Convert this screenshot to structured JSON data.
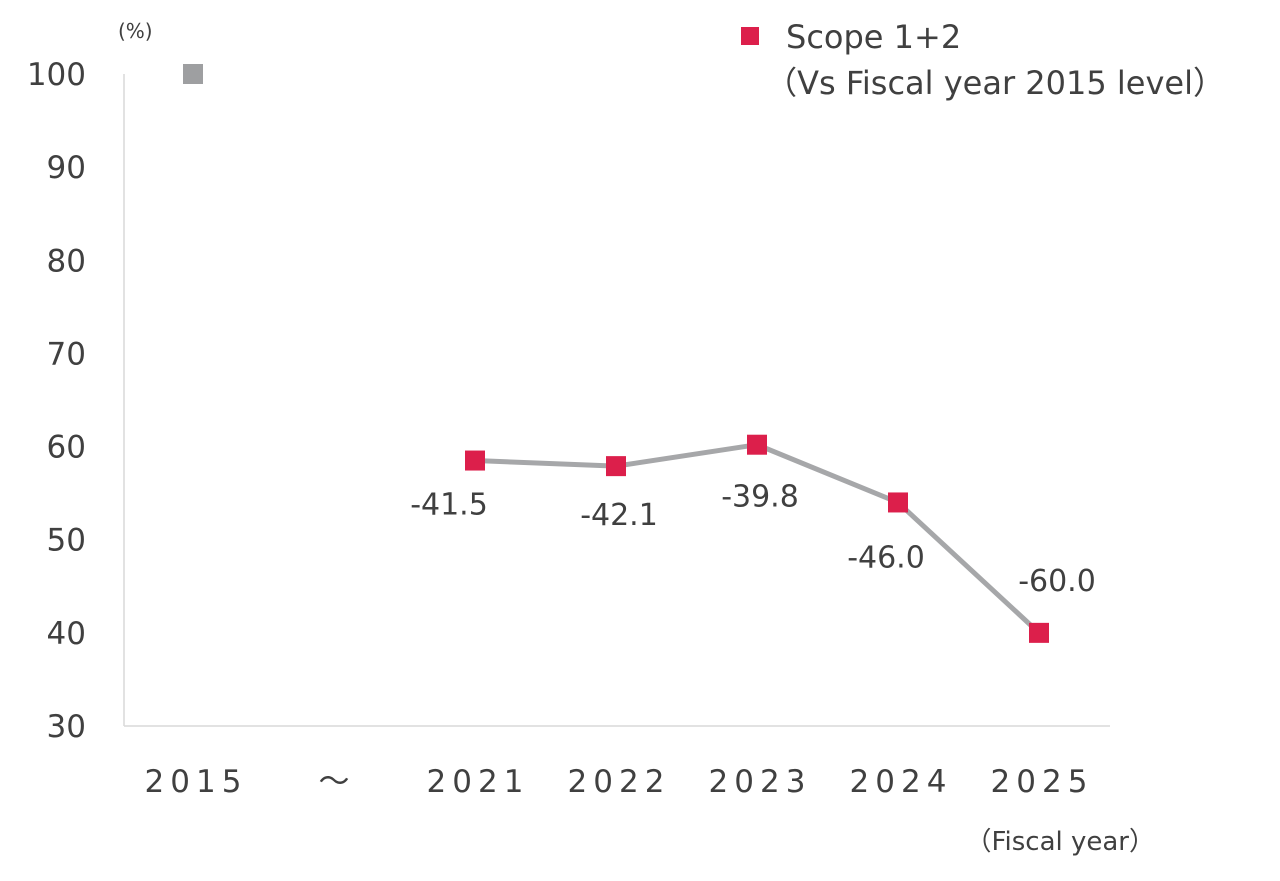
{
  "chart_data": {
    "type": "line",
    "y_unit": "(%)",
    "x_unit": "（Fiscal year）",
    "ylim": [
      30,
      100
    ],
    "yticks": [
      100,
      90,
      80,
      70,
      60,
      50,
      40,
      30
    ],
    "categories": [
      "2015",
      "～",
      "2021",
      "2022",
      "2023",
      "2024",
      "2025"
    ],
    "baseline": {
      "x": "2015",
      "value": 100,
      "color": "#9E9FA1"
    },
    "series": [
      {
        "name": "Scope 1+2",
        "x": [
          "2021",
          "2022",
          "2023",
          "2024",
          "2025"
        ],
        "values": [
          58.5,
          57.9,
          60.2,
          54.0,
          40.0
        ],
        "labels": [
          "-41.5",
          "-42.1",
          "-39.8",
          "-46.0",
          "-60.0"
        ],
        "marker_color": "#DC1F4B",
        "line_color": "#A6A7A9"
      }
    ],
    "legend": {
      "position": "top-right",
      "label": "Scope 1+2",
      "sublabel": "（Vs Fiscal year 2015 level）"
    },
    "grid": false
  }
}
